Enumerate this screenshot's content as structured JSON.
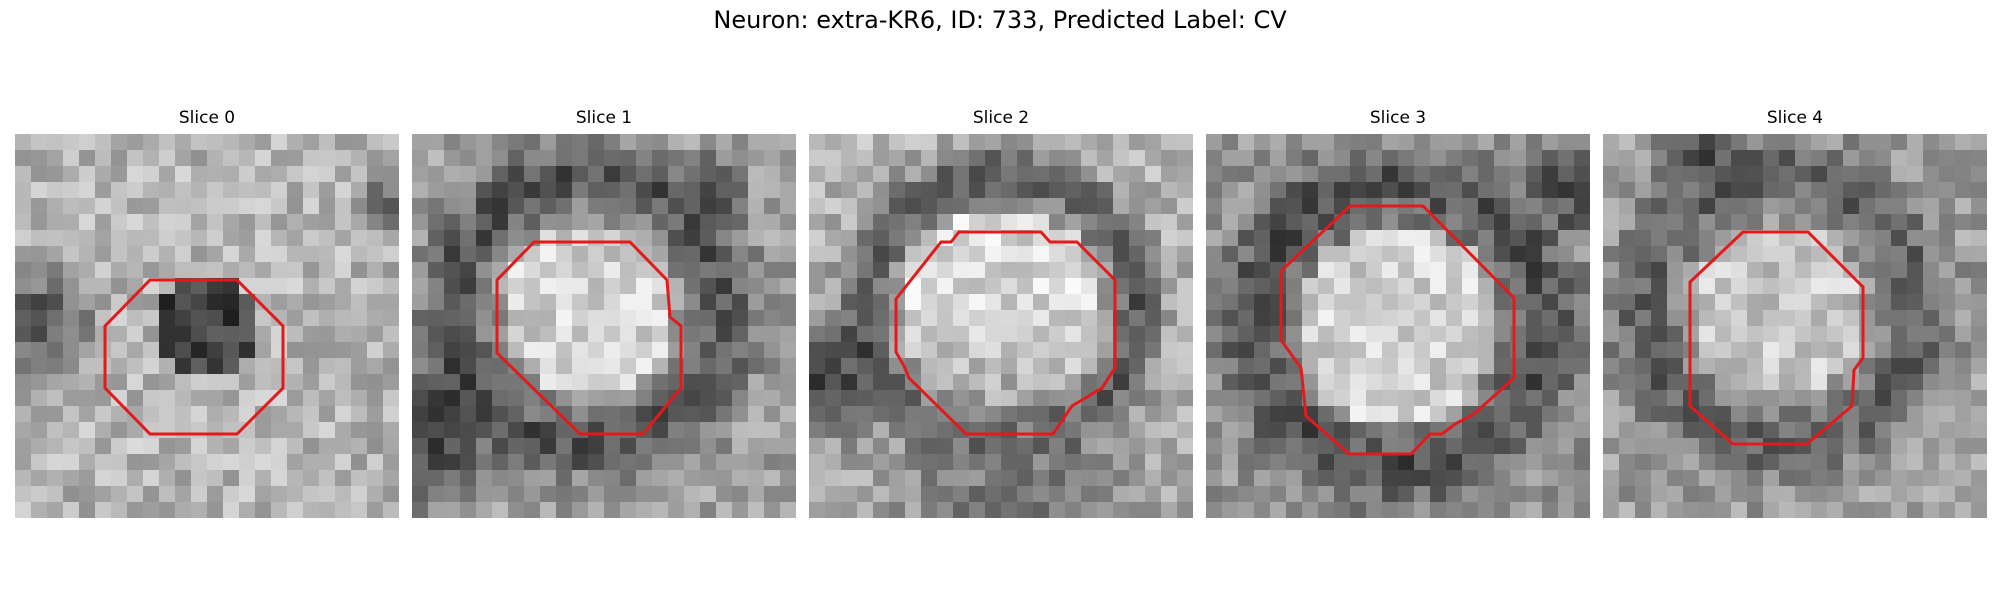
{
  "figure": {
    "title": "Neuron: extra-KR6, ID: 733, Predicted Label: CV",
    "outline_color": "#e31a1c"
  },
  "panels": [
    {
      "title": "Slice 0"
    },
    {
      "title": "Slice 1"
    },
    {
      "title": "Slice 2"
    },
    {
      "title": "Slice 3"
    },
    {
      "title": "Slice 4"
    }
  ]
}
